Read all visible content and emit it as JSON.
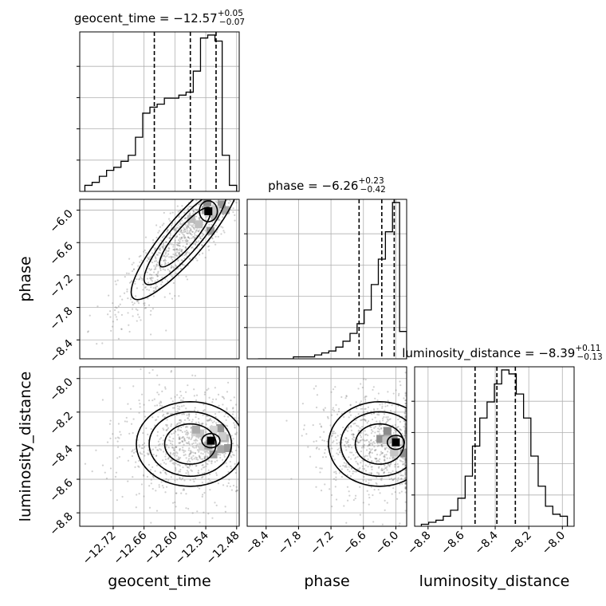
{
  "chart_data": {
    "type": "corner",
    "parameters": [
      "geocent_time",
      "phase",
      "luminosity_distance"
    ],
    "axis_labels": {
      "geocent_time": "geocent_time",
      "phase": "phase",
      "luminosity_distance": "luminosity_distance"
    },
    "ranges": {
      "geocent_time": [
        -12.785,
        -12.475
      ],
      "phase": [
        -8.75,
        -5.8
      ],
      "luminosity_distance": [
        -8.88,
        -7.93
      ]
    },
    "ticks": {
      "geocent_time": [
        -12.72,
        -12.66,
        -12.6,
        -12.54,
        -12.48
      ],
      "phase": [
        -8.4,
        -7.8,
        -7.2,
        -6.6,
        -6.0
      ],
      "luminosity_distance": [
        -8.8,
        -8.6,
        -8.4,
        -8.2,
        -8.0
      ]
    },
    "tick_labels": {
      "geocent_time": [
        "−12.72",
        "−12.66",
        "−12.60",
        "−12.54",
        "−12.48"
      ],
      "phase": [
        "−8.4",
        "−7.8",
        "−7.2",
        "−6.6",
        "−6.0"
      ],
      "luminosity_distance": [
        "−8.8",
        "−8.6",
        "−8.4",
        "−8.2",
        "−8.0"
      ]
    },
    "titles": [
      {
        "param": "geocent_time",
        "prefix": "geocent_time = −12.57",
        "sup": "+0.05",
        "sub": "−0.07"
      },
      {
        "param": "phase",
        "prefix": "phase = −6.26",
        "sup": "+0.23",
        "sub": "−0.42"
      },
      {
        "param": "luminosity_distance",
        "prefix": "luminosity_distance = −8.39",
        "sup": "+0.11",
        "sub": "−0.13"
      }
    ],
    "quantiles": {
      "geocent_time": [
        -12.64,
        -12.57,
        -12.52
      ],
      "phase": [
        -6.68,
        -6.26,
        -6.03
      ],
      "luminosity_distance": [
        -8.52,
        -8.39,
        -8.28
      ]
    },
    "histograms": {
      "geocent_time": [
        2,
        3,
        5,
        7,
        8,
        10,
        12,
        18,
        26,
        28,
        29,
        31,
        31,
        32,
        33,
        40,
        51,
        52,
        50,
        12,
        2
      ],
      "phase": [
        0,
        0,
        0,
        0,
        0,
        1,
        1,
        1,
        2,
        3,
        4,
        6,
        9,
        13,
        18,
        25,
        38,
        51,
        65,
        80,
        14
      ],
      "luminosity_distance": [
        1,
        2,
        3,
        5,
        8,
        14,
        25,
        40,
        54,
        62,
        71,
        78,
        76,
        66,
        54,
        35,
        20,
        10,
        6,
        5
      ]
    },
    "pair_density_peaks": [
      {
        "x": "geocent_time",
        "y": "phase",
        "peak": [
          -12.535,
          -6.02
        ]
      },
      {
        "x": "geocent_time",
        "y": "luminosity_distance",
        "peak": [
          -12.53,
          -8.37
        ]
      },
      {
        "x": "phase",
        "y": "luminosity_distance",
        "peak": [
          -6.0,
          -8.38
        ]
      }
    ],
    "grid": true,
    "legend": "none"
  }
}
